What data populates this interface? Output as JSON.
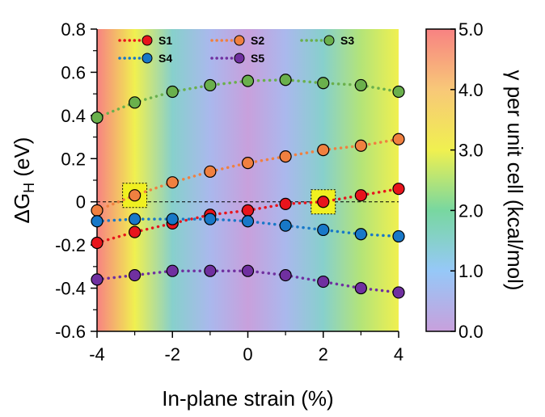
{
  "chart_data": {
    "type": "scatter",
    "xlabel": "In-plane strain (%)",
    "ylabel_main": "ΔG",
    "ylabel_sub": "H",
    "ylabel_unit": " (eV)",
    "xlim": [
      -4,
      4
    ],
    "ylim": [
      -0.6,
      0.8
    ],
    "x_ticks": [
      -4,
      -2,
      0,
      2,
      4
    ],
    "x_tick_labels": [
      "-4",
      "-2",
      "0",
      "2",
      "4"
    ],
    "y_ticks": [
      -0.6,
      -0.4,
      -0.2,
      0,
      0.2,
      0.4,
      0.6,
      0.8
    ],
    "y_tick_labels": [
      "-0.6",
      "-0.4",
      "-0.2",
      "0",
      "0.2",
      "0.4",
      "0.6",
      "0.8"
    ],
    "reference_line_y": 0,
    "x": [
      -4,
      -3,
      -2,
      -1,
      0,
      1,
      2,
      3,
      4
    ],
    "series": [
      {
        "name": "S1",
        "color": "#e8141c",
        "values": [
          -0.19,
          -0.14,
          -0.1,
          -0.06,
          -0.04,
          -0.01,
          0.0,
          0.03,
          0.06
        ]
      },
      {
        "name": "S2",
        "color": "#f08040",
        "values": [
          -0.04,
          0.03,
          0.09,
          0.14,
          0.18,
          0.21,
          0.24,
          0.26,
          0.29
        ]
      },
      {
        "name": "S3",
        "color": "#6ab04c",
        "values": [
          0.39,
          0.46,
          0.51,
          0.54,
          0.56,
          0.565,
          0.55,
          0.54,
          0.51
        ]
      },
      {
        "name": "S4",
        "color": "#1878c8",
        "values": [
          -0.09,
          -0.08,
          -0.08,
          -0.08,
          -0.09,
          -0.11,
          -0.13,
          -0.15,
          -0.16
        ]
      },
      {
        "name": "S5",
        "color": "#7030a0",
        "values": [
          -0.36,
          -0.34,
          -0.32,
          -0.32,
          -0.32,
          -0.34,
          -0.37,
          -0.4,
          -0.42
        ]
      }
    ],
    "highlights": [
      {
        "series": "S2",
        "x": -3,
        "color": "#f0f020"
      },
      {
        "series": "S1",
        "x": 2,
        "color": "#f0f020"
      }
    ],
    "background_gamma": [
      5.0,
      3.0,
      1.5,
      0.6,
      0.0,
      0.6,
      1.5,
      2.5,
      3.0
    ],
    "colorbar": {
      "label": "γ per unit cell (kcal/mol)",
      "range": [
        0.0,
        5.0
      ],
      "ticks": [
        0.0,
        1.0,
        2.0,
        3.0,
        4.0,
        5.0
      ],
      "tick_labels": [
        "0.0",
        "1.0",
        "2.0",
        "3.0",
        "4.0",
        "5.0"
      ]
    },
    "legend_placement": "top",
    "grid": false
  }
}
